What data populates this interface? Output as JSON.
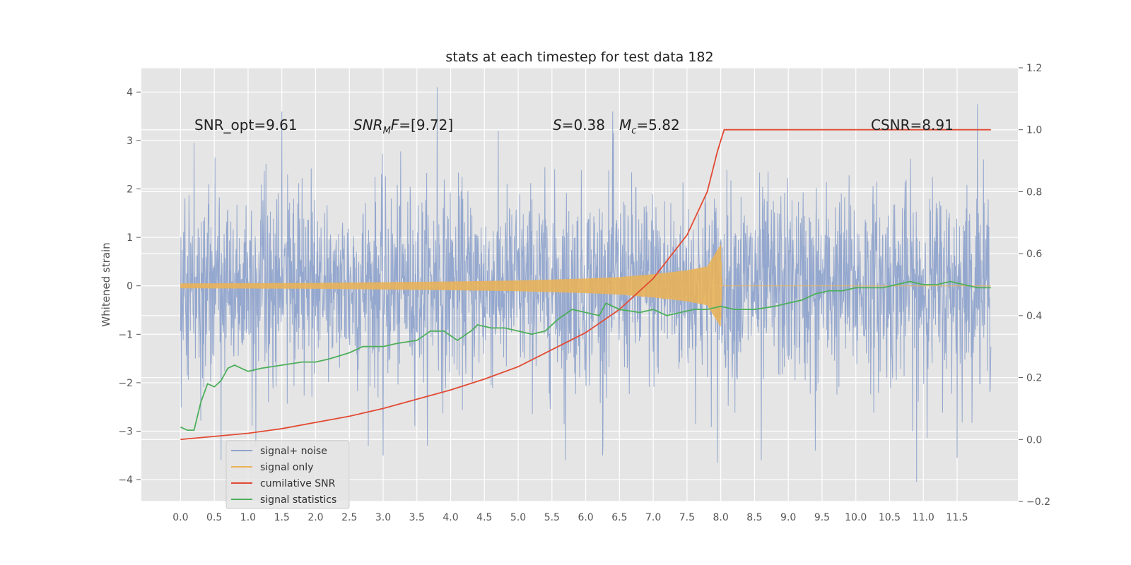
{
  "chart_data": {
    "type": "line",
    "title": "stats at each timestep for test data 182",
    "ylabel": "Whitened strain",
    "y2label": "",
    "xlim": [
      -0.58,
      12.4
    ],
    "ylim": [
      -4.45,
      4.5
    ],
    "y2lim": [
      -0.2,
      1.2
    ],
    "x_ticks": [
      "0.0",
      "0.5",
      "1.0",
      "1.5",
      "2.0",
      "2.5",
      "3.0",
      "3.5",
      "4.0",
      "4.5",
      "5.0",
      "5.5",
      "6.0",
      "6.5",
      "7.0",
      "7.5",
      "8.0",
      "8.5",
      "9.0",
      "9.5",
      "10.0",
      "10.5",
      "11.0",
      "11.5"
    ],
    "y_ticks": [
      "4",
      "3",
      "2",
      "1",
      "0",
      "−1",
      "−2",
      "−3",
      "−4"
    ],
    "y2_ticks": [
      "1.2",
      "1.0",
      "0.8",
      "0.6",
      "0.4",
      "0.2",
      "0.0",
      "−0.2"
    ],
    "grid": true,
    "legend_position": "lower-left",
    "annotations": {
      "snr_opt": "SNR_opt=9.61",
      "snr_mf": "=[9.72]",
      "s": "=0.38",
      "mc": "=5.82",
      "csnr": "CSNR=8.91"
    },
    "series": [
      {
        "name": "signal+ noise",
        "color": "#8fa3cc",
        "description_of_values": "whitened strain noise, approx Gaussian sigma 1, range -4.1 to 4.1, x 0.0-12.0",
        "x_range": [
          0.0,
          12.0
        ],
        "spikes": [
          [
            3.8,
            4.1
          ],
          [
            1.5,
            3.6
          ],
          [
            11.8,
            3.75
          ],
          [
            10.9,
            -4.05
          ],
          [
            0.6,
            -3.6
          ],
          [
            6.4,
            3.6
          ],
          [
            5.7,
            -3.6
          ],
          [
            9.4,
            -3.4
          ],
          [
            3.0,
            -3.5
          ],
          [
            8.6,
            -3.6
          ],
          [
            0.2,
            2.95
          ],
          [
            7.95,
            -3.65
          ],
          [
            6.25,
            -3.5
          ],
          [
            11.5,
            -3.55
          ]
        ]
      },
      {
        "name": "signal only",
        "color": "#e8b35a",
        "description_of_values": "chirp envelope, amplitude ~0.05 at t=0 growing to ~0.85 at t=8.0, zero after",
        "envelope": [
          [
            0.0,
            0.05
          ],
          [
            2.0,
            0.06
          ],
          [
            4.0,
            0.09
          ],
          [
            5.0,
            0.11
          ],
          [
            6.0,
            0.15
          ],
          [
            6.5,
            0.18
          ],
          [
            7.0,
            0.24
          ],
          [
            7.5,
            0.32
          ],
          [
            7.8,
            0.4
          ],
          [
            8.0,
            0.85
          ],
          [
            8.02,
            0.0
          ],
          [
            12.0,
            0.0
          ]
        ]
      },
      {
        "name": "cumilative SNR",
        "color": "#e24a33",
        "axis": "right",
        "points": [
          [
            0.0,
            0.0
          ],
          [
            0.5,
            0.01
          ],
          [
            1.0,
            0.02
          ],
          [
            1.5,
            0.035
          ],
          [
            2.0,
            0.055
          ],
          [
            2.5,
            0.075
          ],
          [
            3.0,
            0.1
          ],
          [
            3.5,
            0.13
          ],
          [
            4.0,
            0.16
          ],
          [
            4.5,
            0.195
          ],
          [
            5.0,
            0.235
          ],
          [
            5.5,
            0.29
          ],
          [
            6.0,
            0.345
          ],
          [
            6.5,
            0.42
          ],
          [
            7.0,
            0.52
          ],
          [
            7.5,
            0.66
          ],
          [
            7.8,
            0.8
          ],
          [
            7.95,
            0.93
          ],
          [
            8.05,
            1.0
          ],
          [
            12.0,
            1.0
          ]
        ]
      },
      {
        "name": "signal statistics",
        "color": "#4eaf5b",
        "axis": "right",
        "points": [
          [
            0.0,
            0.04
          ],
          [
            0.1,
            0.03
          ],
          [
            0.2,
            0.03
          ],
          [
            0.3,
            0.12
          ],
          [
            0.4,
            0.18
          ],
          [
            0.5,
            0.17
          ],
          [
            0.6,
            0.19
          ],
          [
            0.7,
            0.23
          ],
          [
            0.8,
            0.24
          ],
          [
            0.9,
            0.23
          ],
          [
            1.0,
            0.22
          ],
          [
            1.2,
            0.23
          ],
          [
            1.5,
            0.24
          ],
          [
            1.8,
            0.25
          ],
          [
            2.0,
            0.25
          ],
          [
            2.2,
            0.26
          ],
          [
            2.5,
            0.28
          ],
          [
            2.7,
            0.3
          ],
          [
            3.0,
            0.3
          ],
          [
            3.2,
            0.31
          ],
          [
            3.5,
            0.32
          ],
          [
            3.7,
            0.35
          ],
          [
            3.9,
            0.35
          ],
          [
            4.1,
            0.32
          ],
          [
            4.3,
            0.35
          ],
          [
            4.4,
            0.37
          ],
          [
            4.6,
            0.36
          ],
          [
            4.8,
            0.36
          ],
          [
            5.0,
            0.35
          ],
          [
            5.2,
            0.34
          ],
          [
            5.4,
            0.35
          ],
          [
            5.6,
            0.39
          ],
          [
            5.8,
            0.42
          ],
          [
            6.0,
            0.41
          ],
          [
            6.2,
            0.4
          ],
          [
            6.3,
            0.44
          ],
          [
            6.5,
            0.42
          ],
          [
            6.8,
            0.41
          ],
          [
            7.0,
            0.42
          ],
          [
            7.2,
            0.4
          ],
          [
            7.4,
            0.41
          ],
          [
            7.6,
            0.42
          ],
          [
            7.8,
            0.42
          ],
          [
            8.0,
            0.43
          ],
          [
            8.2,
            0.42
          ],
          [
            8.5,
            0.42
          ],
          [
            8.8,
            0.43
          ],
          [
            9.0,
            0.44
          ],
          [
            9.2,
            0.45
          ],
          [
            9.4,
            0.47
          ],
          [
            9.6,
            0.48
          ],
          [
            9.8,
            0.48
          ],
          [
            10.0,
            0.49
          ],
          [
            10.2,
            0.49
          ],
          [
            10.4,
            0.49
          ],
          [
            10.6,
            0.5
          ],
          [
            10.8,
            0.51
          ],
          [
            11.0,
            0.5
          ],
          [
            11.2,
            0.5
          ],
          [
            11.4,
            0.51
          ],
          [
            11.6,
            0.5
          ],
          [
            11.8,
            0.49
          ],
          [
            12.0,
            0.49
          ]
        ]
      }
    ]
  }
}
